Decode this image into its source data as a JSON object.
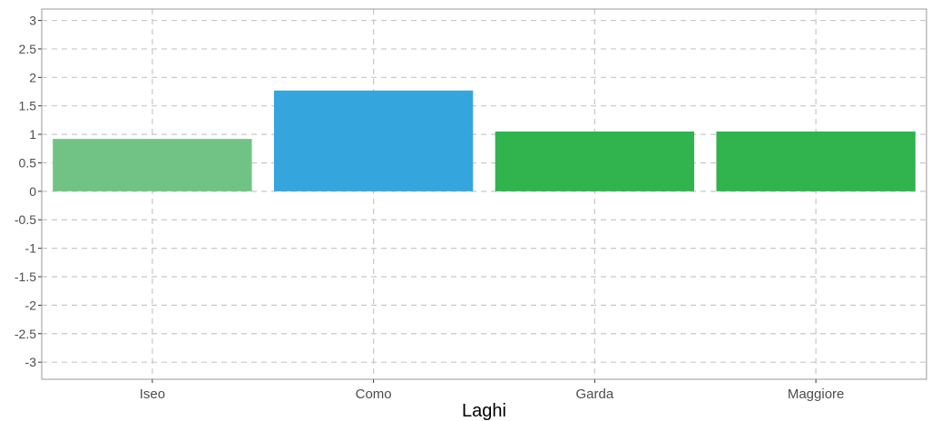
{
  "chart_data": {
    "type": "bar",
    "title": "",
    "xlabel": "Laghi",
    "ylabel": "",
    "categories": [
      "Iseo",
      "Como",
      "Garda",
      "Maggiore"
    ],
    "values": [
      0.92,
      1.77,
      1.05,
      1.05
    ],
    "bar_colors": [
      "#71c385",
      "#34a6dd",
      "#31b34d",
      "#31b34d"
    ],
    "ylim": [
      -3.3,
      3.2
    ],
    "yticks": [
      3,
      2.5,
      2,
      1.5,
      1,
      0.5,
      0,
      -0.5,
      -1,
      -1.5,
      -2,
      -2.5,
      -3
    ],
    "ytick_labels": [
      "3",
      "2.5",
      "2",
      "1.5",
      "1",
      "0.5",
      "0",
      "-0.5",
      "-1",
      "-1.5",
      "-2",
      "-2.5",
      "-3"
    ],
    "grid": true,
    "legend": "none"
  }
}
